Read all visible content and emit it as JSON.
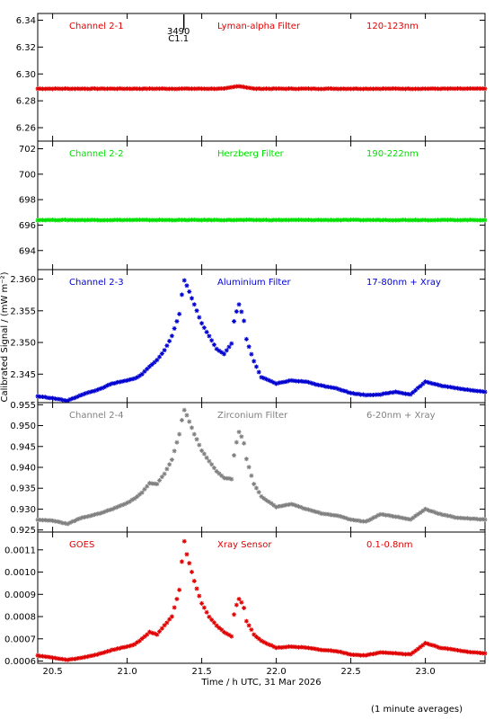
{
  "xaxis": {
    "label": "Time / h UTC, 31 Mar 2026",
    "xlim": [
      20.4,
      23.4
    ],
    "ticks": [
      20.5,
      21.0,
      21.5,
      22.0,
      22.5,
      23.0
    ],
    "tick_labels": [
      "20.5",
      "21.0",
      "21.5",
      "22.0",
      "22.5",
      "23.0"
    ]
  },
  "ylabel": "Calibrated Signal / (mW m⁻²)",
  "footnote": "(1 minute averages)",
  "marker": {
    "x": 21.38,
    "label_top": "3490",
    "label_bottom": "C1.1"
  },
  "colors": {
    "ch1": "#e00000",
    "ch2": "#00e000",
    "ch3": "#0000d0",
    "ch4": "#808080",
    "goes": "#e00000"
  },
  "chart_data": [
    {
      "type": "scatter",
      "name": "Channel 2-1",
      "filter": "Lyman-alpha Filter",
      "band": "120-123nm",
      "ylim": [
        6.25,
        6.345
      ],
      "yticks": [
        6.26,
        6.28,
        6.3,
        6.32,
        6.34
      ],
      "ytick_labels": [
        "6.26",
        "6.28",
        "6.30",
        "6.32",
        "6.34"
      ],
      "x": [
        20.4,
        20.5,
        20.6,
        20.7,
        20.8,
        20.9,
        21.0,
        21.1,
        21.2,
        21.3,
        21.4,
        21.5,
        21.6,
        21.65,
        21.7,
        21.75,
        21.8,
        21.85,
        21.9,
        22.0,
        22.2,
        22.4,
        22.6,
        22.8,
        23.0,
        23.2,
        23.4
      ],
      "y": [
        6.289,
        6.289,
        6.289,
        6.289,
        6.289,
        6.289,
        6.289,
        6.289,
        6.289,
        6.289,
        6.289,
        6.289,
        6.289,
        6.289,
        6.29,
        6.291,
        6.29,
        6.289,
        6.289,
        6.289,
        6.289,
        6.289,
        6.289,
        6.289,
        6.289,
        6.289,
        6.289
      ]
    },
    {
      "type": "scatter",
      "name": "Channel 2-2",
      "filter": "Herzberg Filter",
      "band": "190-222nm",
      "ylim": [
        692.5,
        702.6
      ],
      "yticks": [
        694,
        696,
        698,
        700,
        702
      ],
      "ytick_labels": [
        "694",
        "696",
        "698",
        "700",
        "702"
      ],
      "x": [
        20.4,
        20.6,
        20.8,
        21.0,
        21.2,
        21.4,
        21.6,
        21.8,
        22.0,
        22.2,
        22.4,
        22.6,
        22.8,
        23.0,
        23.2,
        23.4
      ],
      "y": [
        696.4,
        696.4,
        696.4,
        696.4,
        696.4,
        696.4,
        696.4,
        696.4,
        696.4,
        696.4,
        696.4,
        696.4,
        696.4,
        696.4,
        696.4,
        696.4
      ]
    },
    {
      "type": "scatter",
      "name": "Channel 2-3",
      "filter": "Aluminium Filter",
      "band": "17-80nm + Xray",
      "ylim": [
        2.3405,
        2.3615
      ],
      "yticks": [
        2.345,
        2.35,
        2.355,
        2.36
      ],
      "ytick_labels": [
        "2.345",
        "2.350",
        "2.355",
        "2.360"
      ],
      "x": [
        20.4,
        20.5,
        20.6,
        20.7,
        20.8,
        20.9,
        21.0,
        21.05,
        21.1,
        21.15,
        21.2,
        21.25,
        21.3,
        21.35,
        21.38,
        21.4,
        21.45,
        21.5,
        21.55,
        21.6,
        21.65,
        21.7,
        21.72,
        21.75,
        21.78,
        21.8,
        21.85,
        21.9,
        22.0,
        22.1,
        22.2,
        22.3,
        22.4,
        22.5,
        22.6,
        22.7,
        22.8,
        22.9,
        23.0,
        23.1,
        23.2,
        23.3,
        23.4
      ],
      "y": [
        2.3415,
        2.3412,
        2.3408,
        2.3418,
        2.3425,
        2.3435,
        2.344,
        2.3443,
        2.345,
        2.3462,
        2.3472,
        2.3488,
        2.351,
        2.3545,
        2.36,
        2.359,
        2.356,
        2.353,
        2.351,
        2.349,
        2.3482,
        2.3498,
        2.354,
        2.356,
        2.354,
        2.3505,
        2.347,
        2.3445,
        2.3435,
        2.344,
        2.3438,
        2.3432,
        2.3428,
        2.342,
        2.3417,
        2.3418,
        2.3422,
        2.3418,
        2.3438,
        2.3432,
        2.3428,
        2.3425,
        2.3422
      ]
    },
    {
      "type": "scatter",
      "name": "Channel 2-4",
      "filter": "Zirconium Filter",
      "band": "6-20nm + Xray",
      "ylim": [
        0.9245,
        0.9555
      ],
      "yticks": [
        0.925,
        0.93,
        0.935,
        0.94,
        0.945,
        0.95,
        0.955
      ],
      "ytick_labels": [
        "0.925",
        "0.930",
        "0.935",
        "0.940",
        "0.945",
        "0.950",
        "0.955"
      ],
      "x": [
        20.4,
        20.5,
        20.6,
        20.7,
        20.8,
        20.9,
        21.0,
        21.05,
        21.1,
        21.15,
        21.2,
        21.25,
        21.3,
        21.35,
        21.38,
        21.4,
        21.45,
        21.5,
        21.55,
        21.6,
        21.65,
        21.7,
        21.72,
        21.75,
        21.78,
        21.8,
        21.85,
        21.9,
        22.0,
        22.1,
        22.2,
        22.3,
        22.4,
        22.5,
        22.6,
        22.7,
        22.8,
        22.9,
        23.0,
        23.1,
        23.2,
        23.3,
        23.4
      ],
      "y": [
        0.9275,
        0.9272,
        0.9265,
        0.928,
        0.9288,
        0.93,
        0.9315,
        0.9325,
        0.934,
        0.9362,
        0.936,
        0.9385,
        0.9418,
        0.948,
        0.954,
        0.9525,
        0.948,
        0.944,
        0.9415,
        0.939,
        0.9375,
        0.9372,
        0.944,
        0.9485,
        0.9465,
        0.942,
        0.936,
        0.933,
        0.9305,
        0.9312,
        0.93,
        0.929,
        0.9285,
        0.9275,
        0.927,
        0.9288,
        0.9282,
        0.9275,
        0.93,
        0.9288,
        0.928,
        0.9277,
        0.9275
      ]
    },
    {
      "type": "scatter",
      "name": "GOES",
      "filter": "Xray Sensor",
      "band": "0.1-0.8nm",
      "ylim": [
        0.00059,
        0.00118
      ],
      "yticks": [
        0.0006,
        0.0007,
        0.0008,
        0.0009,
        0.001,
        0.0011
      ],
      "ytick_labels": [
        "0.0006",
        "0.0007",
        "0.0008",
        "0.0009",
        "0.0010",
        "0.0011"
      ],
      "x": [
        20.4,
        20.5,
        20.6,
        20.7,
        20.8,
        20.9,
        21.0,
        21.05,
        21.1,
        21.15,
        21.2,
        21.25,
        21.3,
        21.35,
        21.38,
        21.4,
        21.45,
        21.5,
        21.55,
        21.6,
        21.65,
        21.7,
        21.72,
        21.75,
        21.78,
        21.8,
        21.85,
        21.9,
        22.0,
        22.1,
        22.2,
        22.3,
        22.4,
        22.5,
        22.6,
        22.7,
        22.8,
        22.9,
        23.0,
        23.1,
        23.2,
        23.3,
        23.4
      ],
      "y": [
        0.000625,
        0.000615,
        0.000605,
        0.000615,
        0.00063,
        0.00065,
        0.000665,
        0.000675,
        0.0007,
        0.00073,
        0.00072,
        0.00076,
        0.0008,
        0.00092,
        0.00115,
        0.00108,
        0.00096,
        0.00086,
        0.0008,
        0.00076,
        0.00073,
        0.00071,
        0.00083,
        0.00088,
        0.00085,
        0.00078,
        0.00072,
        0.00069,
        0.00066,
        0.000665,
        0.00066,
        0.00065,
        0.000645,
        0.00063,
        0.000625,
        0.00064,
        0.000635,
        0.00063,
        0.00068,
        0.00066,
        0.00065,
        0.00064,
        0.000635
      ]
    }
  ]
}
